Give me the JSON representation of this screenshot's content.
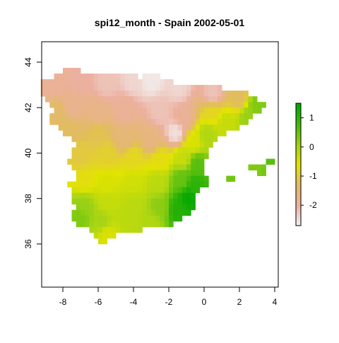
{
  "chart_data": {
    "type": "heatmap",
    "title": "spi12_month - Spain 2002-05-01",
    "xlabel": "",
    "ylabel": "",
    "xlim": [
      -9.2,
      4.2
    ],
    "ylim": [
      34.1,
      44.9
    ],
    "xticks": [
      -8,
      -6,
      -4,
      -2,
      0,
      2,
      4
    ],
    "yticks": [
      36,
      38,
      40,
      42,
      44
    ],
    "grid": false,
    "legend": {
      "placement": "right",
      "range": [
        -2.7,
        1.5
      ],
      "ticks": [
        1,
        0,
        -1,
        -2
      ],
      "stops": [
        {
          "value": -2.7,
          "color": "#f2f2f2"
        },
        {
          "value": -2.0,
          "color": "#ecb0a0"
        },
        {
          "value": -1.2,
          "color": "#e2bc60"
        },
        {
          "value": -0.6,
          "color": "#e3e400"
        },
        {
          "value": 0.0,
          "color": "#a6d415"
        },
        {
          "value": 0.8,
          "color": "#3fb80b"
        },
        {
          "value": 1.5,
          "color": "#00a600"
        }
      ]
    },
    "grid_cell_deg": 0.25,
    "mask_rows": [
      {
        "lat": 43.625,
        "runs": [
          [
            -7.875,
            -7.125
          ]
        ]
      },
      {
        "lat": 43.375,
        "runs": [
          [
            -8.375,
            -3.875
          ],
          [
            -3.375,
            -2.625
          ]
        ]
      },
      {
        "lat": 43.125,
        "runs": [
          [
            -9.125,
            -1.875
          ]
        ]
      },
      {
        "lat": 42.875,
        "runs": [
          [
            -9.125,
            0.875
          ]
        ]
      },
      {
        "lat": 42.625,
        "runs": [
          [
            -9.125,
            2.375
          ]
        ]
      },
      {
        "lat": 42.375,
        "runs": [
          [
            -8.875,
            2.875
          ]
        ]
      },
      {
        "lat": 42.125,
        "runs": [
          [
            -8.625,
            3.375
          ]
        ]
      },
      {
        "lat": 41.875,
        "runs": [
          [
            -8.375,
            3.125
          ]
        ]
      },
      {
        "lat": 41.625,
        "runs": [
          [
            -8.625,
            2.625
          ]
        ]
      },
      {
        "lat": 41.375,
        "runs": [
          [
            -8.625,
            2.375
          ]
        ]
      },
      {
        "lat": 41.125,
        "runs": [
          [
            -8.125,
            1.875
          ]
        ]
      },
      {
        "lat": 40.875,
        "runs": [
          [
            -7.875,
            1.125
          ]
        ]
      },
      {
        "lat": 40.625,
        "runs": [
          [
            -7.375,
            0.625
          ]
        ]
      },
      {
        "lat": 40.375,
        "runs": [
          [
            -7.125,
            0.375
          ]
        ]
      },
      {
        "lat": 40.125,
        "runs": [
          [
            -7.375,
            0.125
          ]
        ]
      },
      {
        "lat": 39.875,
        "runs": [
          [
            -7.375,
            0.125
          ]
        ]
      },
      {
        "lat": 39.625,
        "runs": [
          [
            -7.625,
            -0.125
          ],
          [
            3.625,
            3.875
          ]
        ]
      },
      {
        "lat": 39.375,
        "runs": [
          [
            -7.375,
            -0.125
          ],
          [
            2.625,
            3.375
          ]
        ]
      },
      {
        "lat": 39.125,
        "runs": [
          [
            -7.125,
            -0.125
          ],
          [
            3.125,
            3.375
          ]
        ]
      },
      {
        "lat": 38.875,
        "runs": [
          [
            -7.125,
            0.125
          ],
          [
            1.375,
            1.625
          ]
        ]
      },
      {
        "lat": 38.625,
        "runs": [
          [
            -7.625,
            0.125
          ]
        ]
      },
      {
        "lat": 38.375,
        "runs": [
          [
            -7.375,
            -0.375
          ]
        ]
      },
      {
        "lat": 38.125,
        "runs": [
          [
            -7.375,
            -0.625
          ]
        ]
      },
      {
        "lat": 37.875,
        "runs": [
          [
            -7.375,
            -0.625
          ]
        ]
      },
      {
        "lat": 37.625,
        "runs": [
          [
            -7.125,
            -0.625
          ]
        ]
      },
      {
        "lat": 37.375,
        "runs": [
          [
            -7.375,
            -0.875
          ]
        ]
      },
      {
        "lat": 37.125,
        "runs": [
          [
            -7.375,
            -1.375
          ]
        ]
      },
      {
        "lat": 36.875,
        "runs": [
          [
            -7.125,
            -1.875
          ]
        ]
      },
      {
        "lat": 36.625,
        "runs": [
          [
            -6.375,
            -3.625
          ]
        ]
      },
      {
        "lat": 36.375,
        "runs": [
          [
            -6.125,
            -5.125
          ]
        ]
      },
      {
        "lat": 36.125,
        "runs": [
          [
            -5.875,
            -5.625
          ]
        ]
      }
    ],
    "value_anchors": [
      {
        "lon": -8.5,
        "lat": 43.0,
        "value": -1.9
      },
      {
        "lon": -7.0,
        "lat": 43.3,
        "value": -2.0
      },
      {
        "lon": -5.5,
        "lat": 43.1,
        "value": -2.2
      },
      {
        "lon": -4.0,
        "lat": 43.2,
        "value": -2.4
      },
      {
        "lon": -3.0,
        "lat": 43.2,
        "value": -2.6
      },
      {
        "lon": -1.5,
        "lat": 42.9,
        "value": -2.4
      },
      {
        "lon": 0.5,
        "lat": 42.6,
        "value": -2.2
      },
      {
        "lon": 2.0,
        "lat": 42.4,
        "value": -1.2
      },
      {
        "lon": 3.0,
        "lat": 42.1,
        "value": 0.3
      },
      {
        "lon": 2.5,
        "lat": 41.6,
        "value": 0.1
      },
      {
        "lon": 1.2,
        "lat": 41.3,
        "value": -0.3
      },
      {
        "lon": 0.5,
        "lat": 41.8,
        "value": -0.8
      },
      {
        "lon": -1.2,
        "lat": 41.5,
        "value": -1.9
      },
      {
        "lon": -2.5,
        "lat": 41.8,
        "value": -2.2
      },
      {
        "lon": -4.5,
        "lat": 41.9,
        "value": -1.9
      },
      {
        "lon": -6.0,
        "lat": 41.7,
        "value": -1.7
      },
      {
        "lon": -7.5,
        "lat": 42.1,
        "value": -1.8
      },
      {
        "lon": -8.3,
        "lat": 41.8,
        "value": -1.3
      },
      {
        "lon": -7.8,
        "lat": 41.0,
        "value": -1.2
      },
      {
        "lon": -6.0,
        "lat": 40.9,
        "value": -1.1
      },
      {
        "lon": -4.5,
        "lat": 40.7,
        "value": -1.5
      },
      {
        "lon": -3.0,
        "lat": 40.6,
        "value": -1.6
      },
      {
        "lon": -1.6,
        "lat": 40.9,
        "value": -2.5
      },
      {
        "lon": -0.6,
        "lat": 40.5,
        "value": -0.5
      },
      {
        "lon": 0.2,
        "lat": 40.8,
        "value": -0.1
      },
      {
        "lon": -7.0,
        "lat": 39.8,
        "value": -1.0
      },
      {
        "lon": -5.5,
        "lat": 39.9,
        "value": -0.9
      },
      {
        "lon": -4.0,
        "lat": 39.8,
        "value": -0.8
      },
      {
        "lon": -2.5,
        "lat": 39.7,
        "value": -0.7
      },
      {
        "lon": -1.2,
        "lat": 39.8,
        "value": -0.3
      },
      {
        "lon": -0.4,
        "lat": 39.5,
        "value": 0.6
      },
      {
        "lon": -6.8,
        "lat": 38.9,
        "value": -0.7
      },
      {
        "lon": -5.5,
        "lat": 38.7,
        "value": -0.5
      },
      {
        "lon": -4.0,
        "lat": 38.7,
        "value": -0.4
      },
      {
        "lon": -2.6,
        "lat": 38.7,
        "value": -0.2
      },
      {
        "lon": -1.3,
        "lat": 38.8,
        "value": 0.5
      },
      {
        "lon": -0.5,
        "lat": 38.6,
        "value": 1.0
      },
      {
        "lon": -0.9,
        "lat": 38.0,
        "value": 1.4
      },
      {
        "lon": -1.5,
        "lat": 37.5,
        "value": 1.1
      },
      {
        "lon": -2.5,
        "lat": 37.6,
        "value": 0.2
      },
      {
        "lon": -4.0,
        "lat": 37.7,
        "value": -0.2
      },
      {
        "lon": -5.5,
        "lat": 37.8,
        "value": -0.3
      },
      {
        "lon": -6.8,
        "lat": 37.6,
        "value": 0.1
      },
      {
        "lon": -7.0,
        "lat": 37.2,
        "value": 0.3
      },
      {
        "lon": -5.8,
        "lat": 37.0,
        "value": 0.0
      },
      {
        "lon": -4.2,
        "lat": 37.0,
        "value": -0.2
      },
      {
        "lon": -3.0,
        "lat": 36.9,
        "value": -0.1
      },
      {
        "lon": -5.5,
        "lat": 36.4,
        "value": -0.5
      },
      {
        "lon": 1.5,
        "lat": 38.9,
        "value": 0.4
      },
      {
        "lon": 3.0,
        "lat": 39.5,
        "value": 0.3
      },
      {
        "lon": 3.8,
        "lat": 39.7,
        "value": 0.6
      }
    ]
  }
}
